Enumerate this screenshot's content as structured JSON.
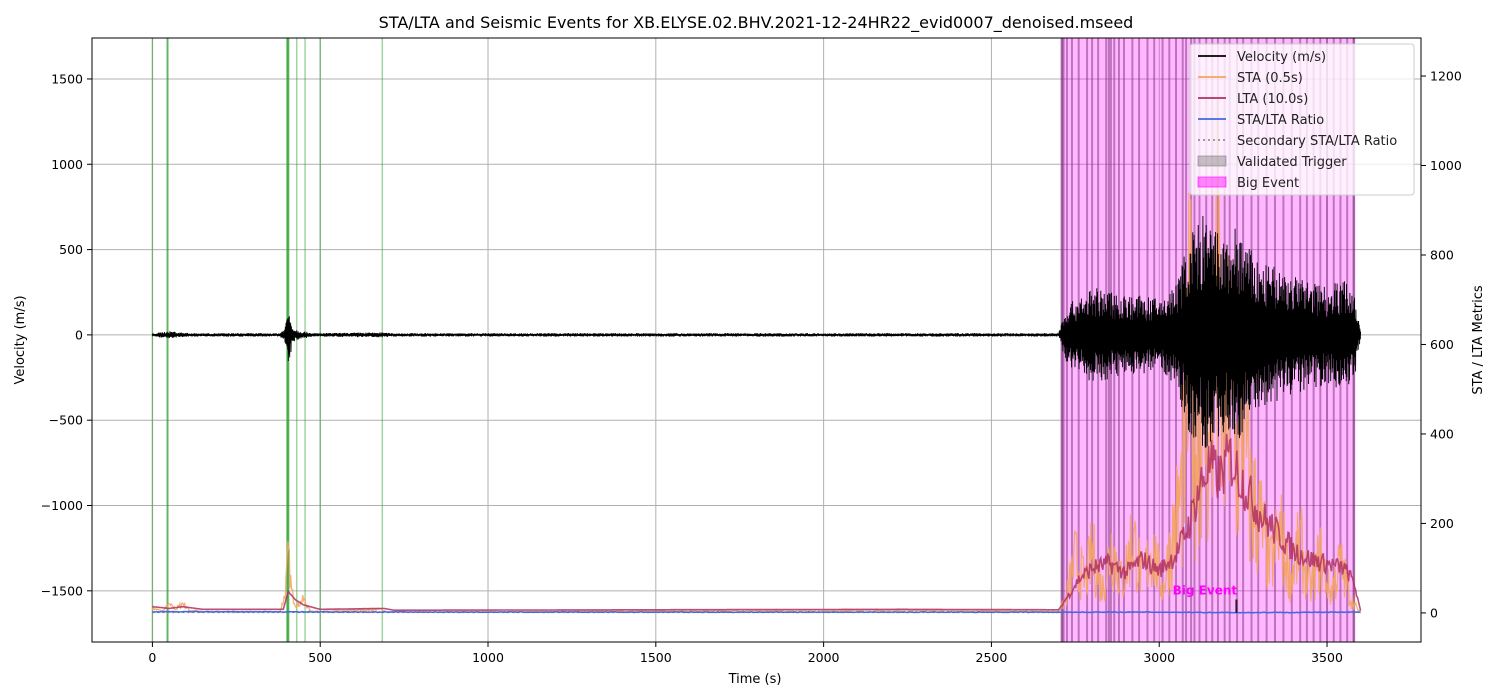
{
  "chart_data": {
    "type": "line",
    "title": "STA/LTA and Seismic Events for XB.ELYSE.02.BHV.2021-12-24HR22_evid0007_denoised.mseed",
    "xlabel": "Time (s)",
    "ylabel_left": "Velocity (m/s)",
    "ylabel_right": "STA / LTA Metrics",
    "xlim": [
      -180,
      3780
    ],
    "ylim_left": [
      -1800,
      1740
    ],
    "ylim_right": [
      -65,
      1285
    ],
    "x_ticks": [
      0,
      500,
      1000,
      1500,
      2000,
      2500,
      3000,
      3500
    ],
    "x_tick_labels": [
      "0",
      "500",
      "1000",
      "1500",
      "2000",
      "2500",
      "3000",
      "3500"
    ],
    "y_left_ticks": [
      1500,
      1000,
      500,
      0,
      -500,
      -1000,
      -1500
    ],
    "y_left_tick_labels": [
      "1500",
      "1000",
      "500",
      "0",
      "−500",
      "−1000",
      "−1500"
    ],
    "y_right_ticks": [
      1200,
      1000,
      800,
      600,
      400,
      200,
      0
    ],
    "y_right_tick_labels": [
      "1200",
      "1000",
      "800",
      "600",
      "400",
      "200",
      "0"
    ],
    "grid": true,
    "legend_position": "top-right",
    "legend": [
      {
        "label": "Velocity (m/s)",
        "style": "line",
        "color": "#000000"
      },
      {
        "label": "STA (0.5s)",
        "style": "line",
        "color": "#f4a460"
      },
      {
        "label": "LTA (10.0s)",
        "style": "line",
        "color": "#b03060"
      },
      {
        "label": "STA/LTA Ratio",
        "style": "line",
        "color": "#4169e1"
      },
      {
        "label": "Secondary STA/LTA Ratio",
        "style": "dotted",
        "color": "#808080"
      },
      {
        "label": "Validated Trigger",
        "style": "patch",
        "color": "#808080"
      },
      {
        "label": "Big Event",
        "style": "patch",
        "color": "#ff00ff"
      }
    ],
    "series": [
      {
        "name": "Velocity (m/s)",
        "axis": "left",
        "color": "#000000",
        "envelope": [
          [
            0,
            8
          ],
          [
            40,
            20
          ],
          [
            60,
            22
          ],
          [
            80,
            15
          ],
          [
            120,
            10
          ],
          [
            380,
            10
          ],
          [
            395,
            45
          ],
          [
            405,
            170
          ],
          [
            420,
            40
          ],
          [
            440,
            25
          ],
          [
            460,
            18
          ],
          [
            480,
            10
          ],
          [
            680,
            15
          ],
          [
            720,
            10
          ],
          [
            2220,
            10
          ],
          [
            2700,
            10
          ],
          [
            2720,
            160
          ],
          [
            2760,
            230
          ],
          [
            2800,
            280
          ],
          [
            2850,
            260
          ],
          [
            2900,
            240
          ],
          [
            2950,
            230
          ],
          [
            3000,
            210
          ],
          [
            3050,
            300
          ],
          [
            3090,
            600
          ],
          [
            3130,
            700
          ],
          [
            3170,
            620
          ],
          [
            3200,
            560
          ],
          [
            3230,
            650
          ],
          [
            3260,
            540
          ],
          [
            3300,
            420
          ],
          [
            3350,
            400
          ],
          [
            3400,
            350
          ],
          [
            3450,
            320
          ],
          [
            3500,
            300
          ],
          [
            3550,
            330
          ],
          [
            3580,
            280
          ],
          [
            3600,
            20
          ]
        ]
      },
      {
        "name": "STA (0.5s)",
        "axis": "right",
        "color": "#f4a460",
        "points": [
          [
            0,
            10
          ],
          [
            30,
            4
          ],
          [
            50,
            18
          ],
          [
            70,
            8
          ],
          [
            90,
            22
          ],
          [
            110,
            6
          ],
          [
            150,
            3
          ],
          [
            380,
            3
          ],
          [
            395,
            40
          ],
          [
            405,
            130
          ],
          [
            415,
            45
          ],
          [
            430,
            15
          ],
          [
            450,
            30
          ],
          [
            470,
            5
          ],
          [
            500,
            3
          ],
          [
            680,
            8
          ],
          [
            700,
            2
          ],
          [
            2240,
            6
          ],
          [
            2700,
            3
          ],
          [
            2720,
            30
          ],
          [
            2750,
            140
          ],
          [
            2780,
            80
          ],
          [
            2800,
            160
          ],
          [
            2830,
            60
          ],
          [
            2860,
            180
          ],
          [
            2890,
            70
          ],
          [
            2920,
            200
          ],
          [
            2950,
            90
          ],
          [
            2980,
            170
          ],
          [
            3010,
            60
          ],
          [
            3040,
            200
          ],
          [
            3070,
            320
          ],
          [
            3090,
            700
          ],
          [
            3110,
            420
          ],
          [
            3130,
            600
          ],
          [
            3150,
            380
          ],
          [
            3170,
            820
          ],
          [
            3190,
            450
          ],
          [
            3210,
            650
          ],
          [
            3230,
            380
          ],
          [
            3250,
            520
          ],
          [
            3270,
            300
          ],
          [
            3300,
            240
          ],
          [
            3330,
            120
          ],
          [
            3360,
            210
          ],
          [
            3390,
            90
          ],
          [
            3420,
            180
          ],
          [
            3450,
            60
          ],
          [
            3480,
            150
          ],
          [
            3510,
            50
          ],
          [
            3540,
            130
          ],
          [
            3570,
            40
          ],
          [
            3590,
            10
          ],
          [
            3600,
            0
          ]
        ]
      },
      {
        "name": "LTA (10.0s)",
        "axis": "right",
        "color": "#b03060",
        "points": [
          [
            0,
            14
          ],
          [
            50,
            10
          ],
          [
            90,
            14
          ],
          [
            150,
            8
          ],
          [
            390,
            8
          ],
          [
            405,
            48
          ],
          [
            425,
            30
          ],
          [
            450,
            18
          ],
          [
            500,
            8
          ],
          [
            690,
            10
          ],
          [
            720,
            6
          ],
          [
            2240,
            8
          ],
          [
            2700,
            7
          ],
          [
            2730,
            40
          ],
          [
            2760,
            75
          ],
          [
            2800,
            100
          ],
          [
            2850,
            110
          ],
          [
            2900,
            90
          ],
          [
            2950,
            120
          ],
          [
            3000,
            95
          ],
          [
            3050,
            130
          ],
          [
            3090,
            200
          ],
          [
            3120,
            280
          ],
          [
            3150,
            330
          ],
          [
            3180,
            300
          ],
          [
            3210,
            350
          ],
          [
            3250,
            290
          ],
          [
            3300,
            220
          ],
          [
            3350,
            180
          ],
          [
            3400,
            140
          ],
          [
            3450,
            120
          ],
          [
            3500,
            110
          ],
          [
            3550,
            100
          ],
          [
            3580,
            70
          ],
          [
            3600,
            5
          ]
        ]
      },
      {
        "name": "STA/LTA Ratio",
        "axis": "right",
        "color": "#4169e1",
        "points": [
          [
            0,
            2
          ],
          [
            1000,
            1
          ],
          [
            2000,
            1
          ],
          [
            2700,
            1
          ],
          [
            3000,
            1
          ],
          [
            3230,
            0
          ],
          [
            3600,
            1
          ]
        ]
      },
      {
        "name": "Secondary STA/LTA Ratio",
        "axis": "right",
        "color": "#808080",
        "points": [
          [
            0,
            1
          ],
          [
            3600,
            1
          ]
        ]
      }
    ],
    "trigger_lines": [
      0,
      45,
      402,
      405,
      430,
      455,
      500,
      685
    ],
    "validated_triggers": [
      2715,
      2725,
      2740,
      2760,
      2785,
      2800,
      2818,
      2842,
      2850,
      2856,
      2866,
      2880,
      2895,
      2920,
      2940,
      2965,
      2985,
      3010,
      3030,
      3050,
      3070,
      3080,
      3095,
      3105,
      3120,
      3140,
      3158,
      3175,
      3195,
      3210,
      3232,
      3250,
      3275,
      3295,
      3320,
      3345,
      3370,
      3395,
      3420,
      3440,
      3460,
      3480,
      3500,
      3520,
      3540,
      3560
    ],
    "big_event": {
      "start": 2710,
      "end": 3580,
      "label": "Big Event",
      "label_x": 3040,
      "label_y_right": 50
    },
    "colors": {
      "big_event_fill": "#ff00ff",
      "trigger_line": "#2ca02c",
      "grid": "#b0b0b0",
      "big_event_label": "#ff00ff"
    }
  }
}
